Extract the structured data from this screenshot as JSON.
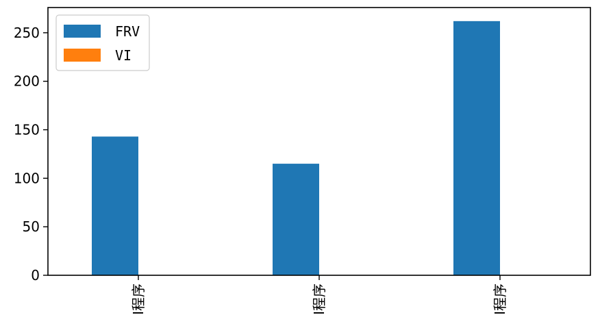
{
  "chart_data": {
    "type": "bar",
    "categories": [
      "I程序",
      "I程序",
      "I程序"
    ],
    "series": [
      {
        "name": "FRV",
        "values": [
          143,
          115,
          262
        ],
        "color": "#1f77b4"
      },
      {
        "name": "VI",
        "values": [
          0,
          0,
          0
        ],
        "color": "#ff7f0e"
      }
    ],
    "ylim": [
      0,
      276
    ],
    "yticks": [
      0,
      50,
      100,
      150,
      200,
      250
    ],
    "xlabel": "",
    "ylabel": "",
    "title": "",
    "grid": false,
    "legend_position": "top-left",
    "x_tick_rotation": 90
  }
}
